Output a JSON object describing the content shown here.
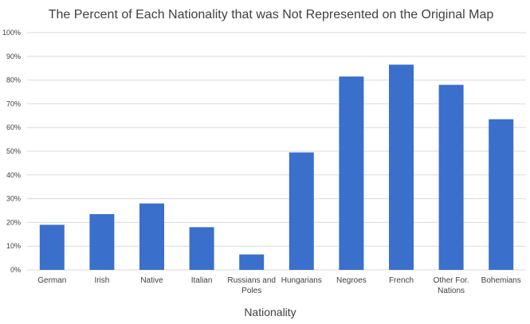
{
  "chart_data": {
    "type": "bar",
    "title": "The Percent of Each Nationality that was Not Represented on the Original Map",
    "xlabel": "Nationality",
    "ylabel": "",
    "categories": [
      [
        "German"
      ],
      [
        "Irish"
      ],
      [
        "Native"
      ],
      [
        "Italian"
      ],
      [
        "Russians and",
        "Poles"
      ],
      [
        "Hungarians"
      ],
      [
        "Negroes"
      ],
      [
        "French"
      ],
      [
        "Other For.",
        "Nations"
      ],
      [
        "Bohemians"
      ]
    ],
    "series": [
      {
        "values": [
          19,
          23.5,
          28,
          18,
          6.5,
          49.5,
          81.5,
          86.5,
          78,
          63.5
        ]
      }
    ],
    "ylim": [
      0,
      100
    ],
    "yticks": [
      "0%",
      "10%",
      "20%",
      "30%",
      "40%",
      "50%",
      "60%",
      "70%",
      "80%",
      "90%",
      "100%"
    ],
    "grid": true,
    "legend": "none",
    "colors": {
      "bar": "#3a6fcc",
      "grid": "#d9d9d9",
      "text": "#404040"
    }
  }
}
